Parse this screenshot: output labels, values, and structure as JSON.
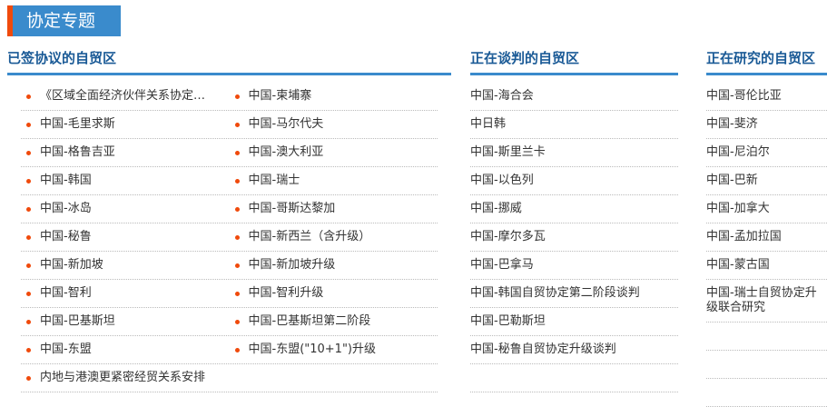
{
  "title": "协定专题",
  "signed": {
    "heading": "已签协议的自贸区",
    "rows": [
      [
        "《区域全面经济伙伴关系协定…",
        "中国-柬埔寨"
      ],
      [
        "中国-毛里求斯",
        "中国-马尔代夫"
      ],
      [
        "中国-格鲁吉亚",
        "中国-澳大利亚"
      ],
      [
        "中国-韩国",
        "中国-瑞士"
      ],
      [
        "中国-冰岛",
        "中国-哥斯达黎加"
      ],
      [
        "中国-秘鲁",
        "中国-新西兰（含升级）"
      ],
      [
        "中国-新加坡",
        "中国-新加坡升级"
      ],
      [
        "中国-智利",
        "中国-智利升级"
      ],
      [
        "中国-巴基斯坦",
        "中国-巴基斯坦第二阶段"
      ],
      [
        "中国-东盟",
        "中国-东盟(\"10+1\")升级"
      ],
      [
        "内地与港澳更紧密经贸关系安排"
      ]
    ]
  },
  "negotiating": {
    "heading": "正在谈判的自贸区",
    "items": [
      "中国-海合会",
      "中日韩",
      "中国-斯里兰卡",
      "中国-以色列",
      "中国-挪威",
      "中国-摩尔多瓦",
      "中国-巴拿马",
      "中国-韩国自贸协定第二阶段谈判",
      "中国-巴勒斯坦",
      "中国-秘鲁自贸协定升级谈判"
    ]
  },
  "researching": {
    "heading": "正在研究的自贸区",
    "items": [
      "中国-哥伦比亚",
      "中国-斐济",
      "中国-尼泊尔",
      "中国-巴新",
      "中国-加拿大",
      "中国-孟加拉国",
      "中国-蒙古国",
      "中国-瑞士自贸协定升级联合研究"
    ]
  },
  "colors": {
    "accent": "#3a8bcc",
    "bullet": "#f04a0c",
    "heading": "#1a5a96"
  }
}
